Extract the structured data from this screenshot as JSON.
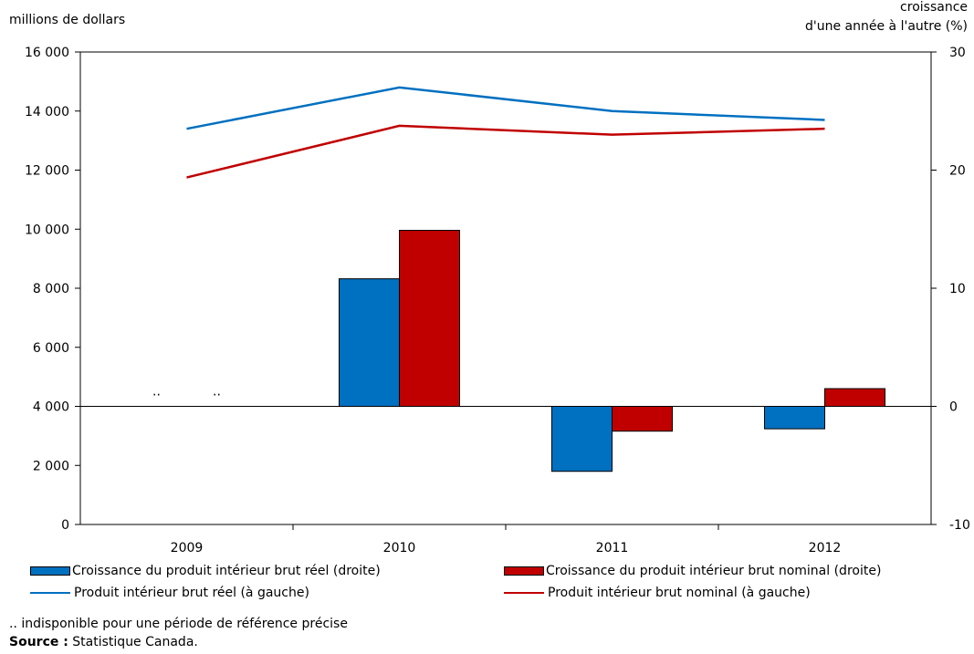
{
  "chart_data": {
    "type": "bar+line",
    "left_axis": {
      "title": "millions de dollars",
      "range": [
        0,
        16000
      ],
      "ticks": [
        0,
        2000,
        4000,
        6000,
        8000,
        10000,
        12000,
        14000,
        16000
      ],
      "tick_labels": [
        "0",
        "2 000",
        "4 000",
        "6 000",
        "8 000",
        "10 000",
        "12 000",
        "14 000",
        "16 000"
      ]
    },
    "right_axis": {
      "title_line1": "croissance",
      "title_line2": "d'une année à l'autre (%)",
      "range": [
        -10,
        30
      ],
      "ticks": [
        -10,
        0,
        10,
        20,
        30
      ],
      "tick_labels": [
        "-10",
        "0",
        "10",
        "20",
        "30"
      ]
    },
    "categories": [
      "2009",
      "2010",
      "2011",
      "2012"
    ],
    "bar_series": [
      {
        "name": "Croissance du produit intérieur brut réel (droite)",
        "color": "#0070c0",
        "axis": "right",
        "values": [
          null,
          10.8,
          -5.5,
          -1.9
        ]
      },
      {
        "name": "Croissance du produit intérieur brut nominal (droite)",
        "color": "#c00000",
        "axis": "right",
        "values": [
          null,
          14.9,
          -2.1,
          1.5
        ]
      }
    ],
    "line_series": [
      {
        "name": "Produit intérieur brut réel (à gauche)",
        "color": "#0070c0",
        "axis": "left",
        "values": [
          13400,
          14800,
          14000,
          13700
        ]
      },
      {
        "name": "Produit intérieur brut nominal (à gauche)",
        "color": "#c00000",
        "axis": "left",
        "values": [
          11750,
          13500,
          13200,
          13400
        ]
      }
    ],
    "missing_marker": ".."
  },
  "footnotes": {
    "unavailable": ".. indisponible pour une période de référence précise",
    "source_label": "Source :",
    "source_text": " Statistique Canada."
  }
}
